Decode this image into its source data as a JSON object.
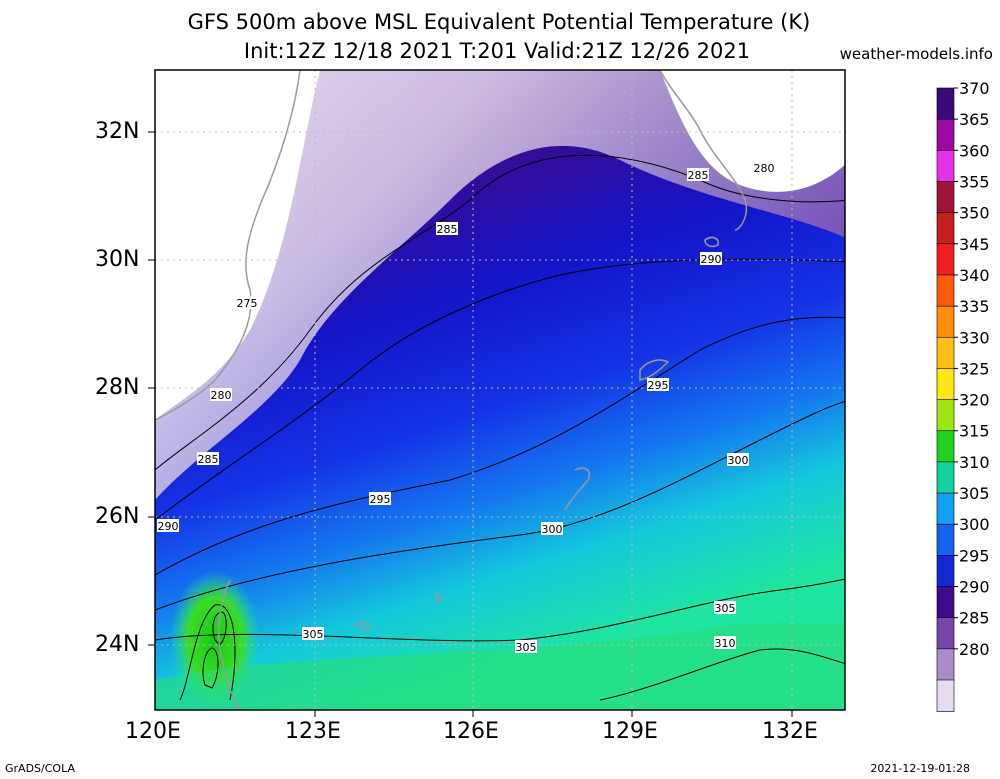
{
  "header": {
    "title_line1": "GFS 500m above MSL Equivalent Potential Temperature (K)",
    "title_line2": "Init:12Z 12/18 2021 T:201 Valid:21Z 12/26 2021",
    "site": "weather-models.info"
  },
  "footer": {
    "left": "GrADS/COLA",
    "right": "2021-12-19-01:28"
  },
  "axes": {
    "lat_labels": [
      "32N",
      "30N",
      "28N",
      "26N",
      "24N"
    ],
    "lon_labels": [
      "120E",
      "123E",
      "126E",
      "129E",
      "132E"
    ],
    "lat_range": [
      23,
      33
    ],
    "lon_range": [
      120,
      133
    ]
  },
  "colorbar": {
    "labels": [
      "370",
      "365",
      "360",
      "355",
      "350",
      "345",
      "340",
      "335",
      "330",
      "325",
      "320",
      "315",
      "310",
      "305",
      "300",
      "295",
      "290",
      "285",
      "280"
    ],
    "colors": [
      "#3c0a78",
      "#9a0aa0",
      "#e632e6",
      "#a0143c",
      "#c81e1e",
      "#f01e1e",
      "#ff5a0a",
      "#ff8c0a",
      "#ffbe14",
      "#ffe614",
      "#a0e614",
      "#1ed21e",
      "#14d2a0",
      "#14a0f0",
      "#1464f0",
      "#1428d2",
      "#3c0a8c",
      "#7846a8",
      "#aa8cc8",
      "#e6dcf0"
    ]
  },
  "contour_labels": [
    {
      "text": "275"
    },
    {
      "text": "280"
    },
    {
      "text": "280"
    },
    {
      "text": "285"
    },
    {
      "text": "285"
    },
    {
      "text": "285"
    },
    {
      "text": "290"
    },
    {
      "text": "290"
    },
    {
      "text": "295"
    },
    {
      "text": "295"
    },
    {
      "text": "300"
    },
    {
      "text": "300"
    },
    {
      "text": "305"
    },
    {
      "text": "305"
    },
    {
      "text": "305"
    },
    {
      "text": "310"
    }
  ]
}
